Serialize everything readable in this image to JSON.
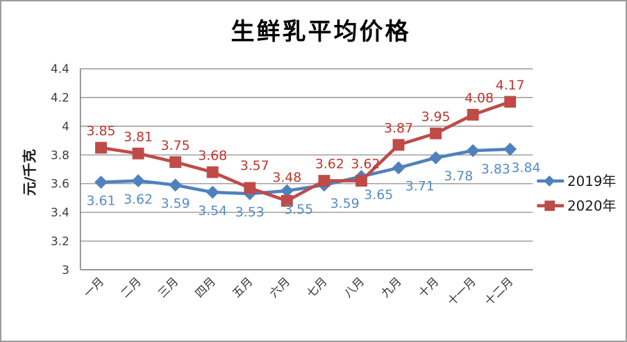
{
  "chart_data": {
    "type": "line",
    "title": "生鲜乳平均价格",
    "ylabel": "元/千克",
    "xlabel": "",
    "ylim": [
      3,
      4.4
    ],
    "ytick_step": 0.2,
    "yticks": [
      "3",
      "3.2",
      "3.4",
      "3.6",
      "3.8",
      "4",
      "4.2",
      "4.4"
    ],
    "grid": true,
    "legend_position": "right",
    "categories": [
      "一月",
      "二月",
      "三月",
      "四月",
      "五月",
      "六月",
      "七月",
      "八月",
      "九月",
      "十月",
      "十一月",
      "十二月"
    ],
    "series": [
      {
        "name": "2019年",
        "marker": "diamond",
        "color": "#4F81BD",
        "label_color": "#558CC6",
        "values": [
          3.61,
          3.62,
          3.59,
          3.54,
          3.53,
          3.55,
          3.59,
          3.65,
          3.71,
          3.78,
          3.83,
          3.84
        ],
        "data_labels": [
          "3.61",
          "3.62",
          "3.59",
          "3.54",
          "3.53",
          "3.55",
          "3.59",
          "3.65",
          "3.71",
          "3.78",
          "3.83",
          "3.84"
        ]
      },
      {
        "name": "2020年",
        "marker": "square",
        "color": "#BE4B48",
        "label_color": "#C0352D",
        "values": [
          3.85,
          3.81,
          3.75,
          3.68,
          3.57,
          3.48,
          3.62,
          3.62,
          3.87,
          3.95,
          4.08,
          4.17
        ],
        "data_labels": [
          "3.85",
          "3.81",
          "3.75",
          "3.68",
          "3.57",
          "3.48",
          "3.62",
          "3.62",
          "3.87",
          "3.95",
          "4.08",
          "4.17"
        ]
      }
    ],
    "colors": {
      "gridline": "#8f8f8f",
      "axis": "#808080",
      "tick_text": "#3f3f3f",
      "category_text": "#333333",
      "legend_text": "#1a1a1a",
      "frame_border": "#9c9c9c",
      "background": "#ffffff"
    }
  }
}
